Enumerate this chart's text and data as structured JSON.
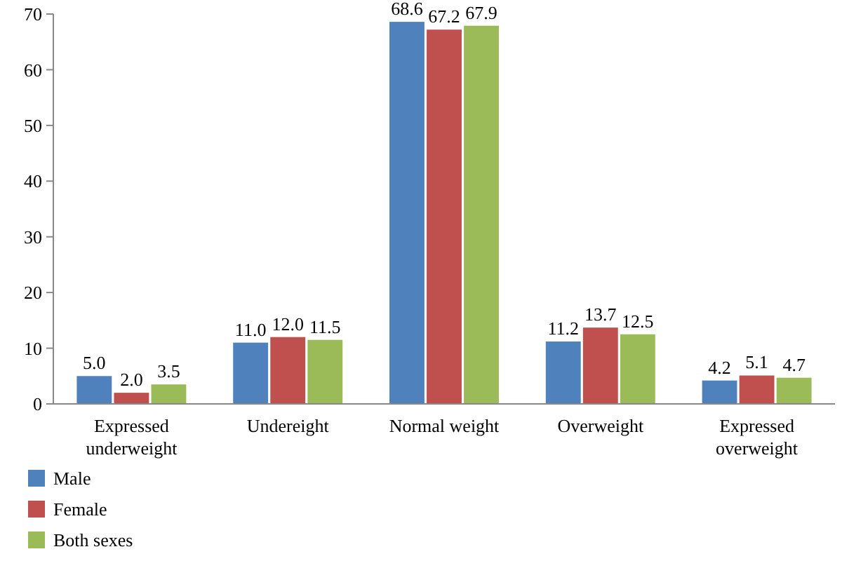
{
  "chart_data": {
    "type": "bar",
    "categories": [
      "Expressed underweight",
      "Undereight",
      "Normal weight",
      "Overweight",
      "Expressed overweight"
    ],
    "series": [
      {
        "name": "Male",
        "color": "#4f81bd",
        "values": [
          5.0,
          11.0,
          68.6,
          11.2,
          4.2
        ],
        "value_labels": [
          "5.0",
          "11.0",
          "68.6",
          "11.2",
          "4.2"
        ]
      },
      {
        "name": "Female",
        "color": "#c0504d",
        "values": [
          2.0,
          12.0,
          67.2,
          13.7,
          5.1
        ],
        "value_labels": [
          "2.0",
          "12.0",
          "67.2",
          "13.7",
          "5.1"
        ]
      },
      {
        "name": "Both sexes",
        "color": "#9bbb59",
        "values": [
          3.5,
          11.5,
          67.9,
          12.5,
          4.7
        ],
        "value_labels": [
          "3.5",
          "11.5",
          "67.9",
          "12.5",
          "4.7"
        ]
      }
    ],
    "ylim": [
      0,
      70
    ],
    "yticks": [
      0,
      10,
      20,
      30,
      40,
      50,
      60,
      70
    ],
    "legend": "bottom left"
  }
}
